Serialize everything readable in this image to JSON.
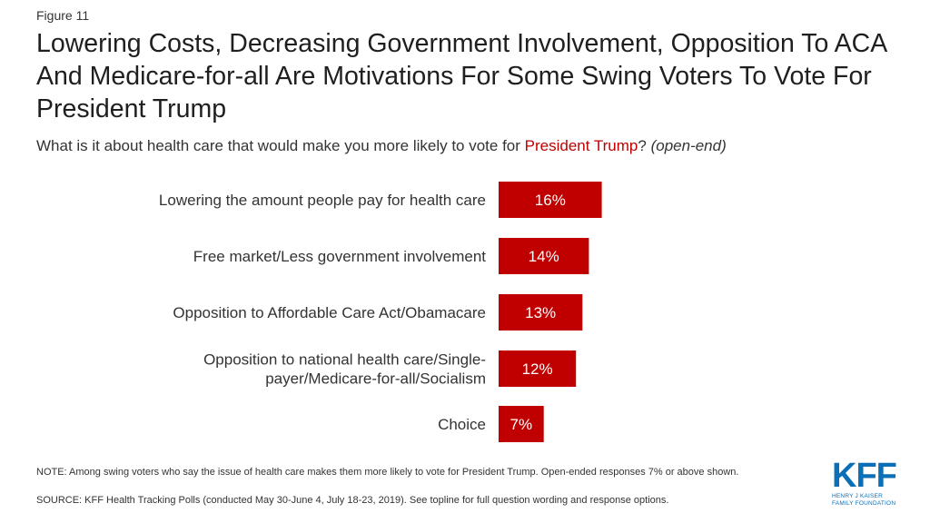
{
  "figure_label": "Figure 11",
  "title": "Lowering Costs, Decreasing Government Involvement, Opposition To ACA And Medicare-for-all Are Motivations For Some Swing Voters To Vote For President Trump",
  "subtitle": {
    "before": "What is it about health care that would make you more likely to vote for ",
    "highlight": "President Trump",
    "after": "? ",
    "italic": "(open-end)"
  },
  "colors": {
    "bar": "#c00000",
    "highlight": "#c00000",
    "logo": "#0b6fb8"
  },
  "chart_data": {
    "type": "bar",
    "orientation": "horizontal",
    "categories": [
      [
        "Lowering the amount people pay for health care"
      ],
      [
        "Free market/Less government involvement"
      ],
      [
        "Opposition to Affordable Care Act/Obamacare"
      ],
      [
        "Opposition to national health care/Single-",
        "payer/Medicare-for-all/Socialism"
      ],
      [
        "Choice"
      ]
    ],
    "values": [
      16,
      14,
      13,
      12,
      7
    ],
    "value_labels": [
      "16%",
      "14%",
      "13%",
      "12%",
      "7%"
    ]
  },
  "note": "NOTE: Among swing voters who say the issue of health care makes them more likely to vote for President Trump. Open-ended responses 7% or above shown.",
  "source": "SOURCE: KFF Health Tracking Polls (conducted May 30-June 4, July 18-23, 2019). See topline for full question wording and response options.",
  "logo": {
    "name": "KFF",
    "line1": "HENRY J KAISER",
    "line2": "FAMILY FOUNDATION"
  }
}
